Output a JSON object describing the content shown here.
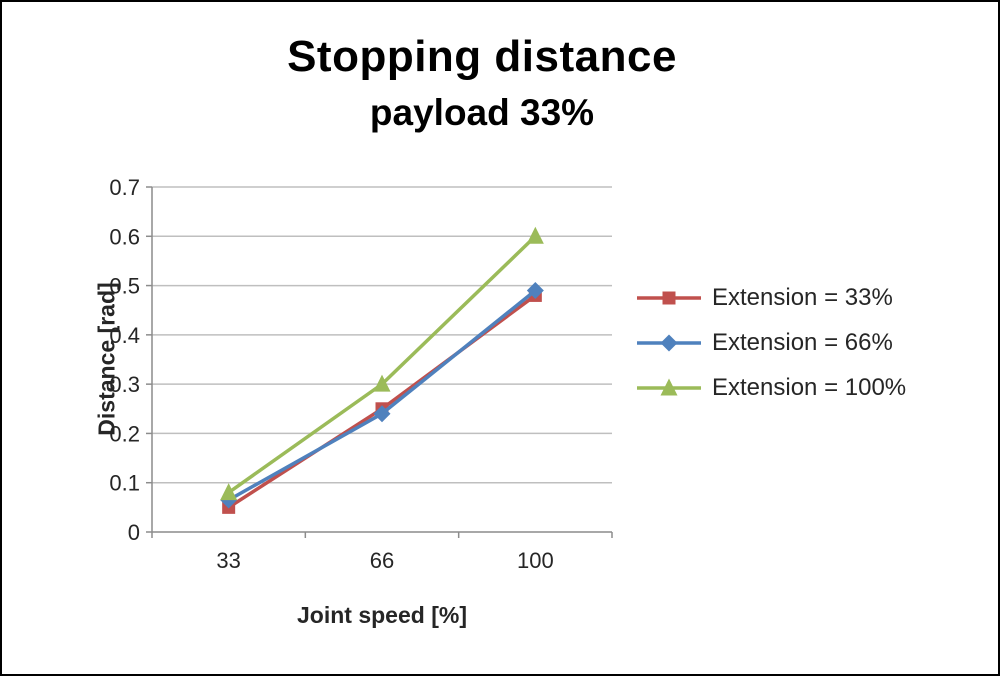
{
  "chart_data": {
    "type": "line",
    "title": "Stopping distance",
    "subtitle": "payload 33%",
    "xlabel": "Joint speed [%]",
    "ylabel": "Distance [rad]",
    "categories": [
      "33",
      "66",
      "100"
    ],
    "series": [
      {
        "name": "Extension = 33%",
        "color": "#c0504d",
        "marker": "square",
        "values": [
          0.05,
          0.25,
          0.48
        ]
      },
      {
        "name": "Extension = 66%",
        "color": "#4f81bd",
        "marker": "diamond",
        "values": [
          0.065,
          0.24,
          0.49
        ]
      },
      {
        "name": "Extension = 100%",
        "color": "#9bbb59",
        "marker": "triangle",
        "values": [
          0.08,
          0.3,
          0.6
        ]
      }
    ],
    "ylim": [
      0,
      0.7
    ],
    "ytick_step": 0.1,
    "yticks": [
      "0",
      "0.1",
      "0.2",
      "0.3",
      "0.4",
      "0.5",
      "0.6",
      "0.7"
    ],
    "grid": true,
    "legend_position": "right"
  }
}
